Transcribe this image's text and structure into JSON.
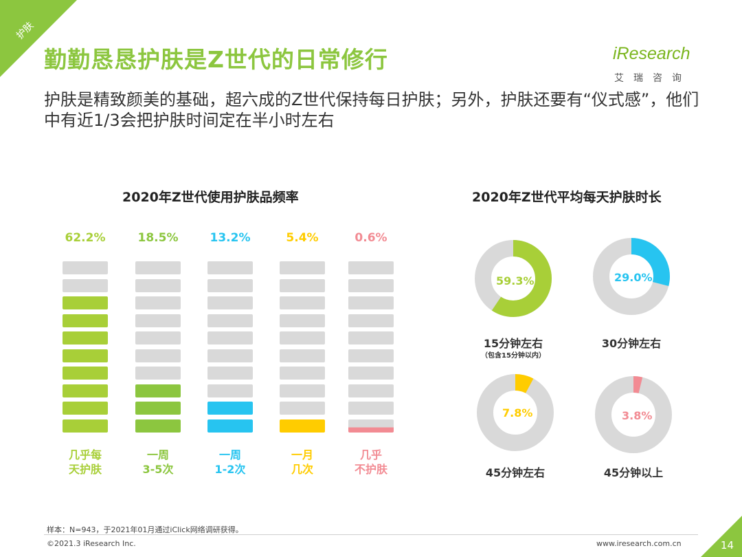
{
  "corner_tag": "护肤",
  "title": "勤勤恳恳护肤是Z世代的日常修行",
  "subtitle": "护肤是精致颜美的基础，超六成的Z世代保持每日护肤；另外，护肤还要有“仪式感”，他们中有近1/3会把护肤时间定在半小时左右",
  "logo": {
    "main": "iResearch",
    "sub": "艾瑞咨询"
  },
  "colors": {
    "green": "#a8cf38",
    "dark_green": "#8cc63f",
    "blue": "#27c4f0",
    "yellow": "#ffcc00",
    "pink": "#f28b93",
    "gray": "#d9d9d9"
  },
  "chart_data": [
    {
      "type": "bar",
      "title": "2020年Z世代使用护肤品频率",
      "categories": [
        "几乎每天护肤",
        "一周3-5次",
        "一周1-2次",
        "一月几次",
        "几乎不护肤"
      ],
      "category_lines": [
        [
          "几乎每",
          "天护肤"
        ],
        [
          "一周",
          "3-5次"
        ],
        [
          "一周",
          "1-2次"
        ],
        [
          "一月",
          "几次"
        ],
        [
          "几乎",
          "不护肤"
        ]
      ],
      "values": [
        62.2,
        18.5,
        13.2,
        5.4,
        0.6
      ],
      "value_labels": [
        "62.2%",
        "18.5%",
        "13.2%",
        "5.4%",
        "0.6%"
      ],
      "colors": [
        "#a8cf38",
        "#8cc63f",
        "#27c4f0",
        "#ffcc00",
        "#f28b93"
      ],
      "cells_per_bar": 10,
      "filled_cells": [
        8,
        3,
        2,
        1,
        0.4
      ]
    },
    {
      "type": "pie",
      "title": "2020年Z世代平均每天护肤时长",
      "items": [
        {
          "label": "15分钟左右",
          "note": "（包含15分钟以内）",
          "value": 59.3,
          "value_label": "59.3%",
          "color": "#a8cf38"
        },
        {
          "label": "30分钟左右",
          "note": "",
          "value": 29.0,
          "value_label": "29.0%",
          "color": "#27c4f0"
        },
        {
          "label": "45分钟左右",
          "note": "",
          "value": 7.8,
          "value_label": "7.8%",
          "color": "#ffcc00"
        },
        {
          "label": "45分钟以上",
          "note": "",
          "value": 3.8,
          "value_label": "3.8%",
          "color": "#f28b93"
        }
      ]
    }
  ],
  "footer": {
    "note": "样本：N=943，于2021年01月通过iClick网络调研获得。",
    "copyright": "©2021.3 iResearch Inc.",
    "website": "www.iresearch.com.cn",
    "page": "14"
  }
}
